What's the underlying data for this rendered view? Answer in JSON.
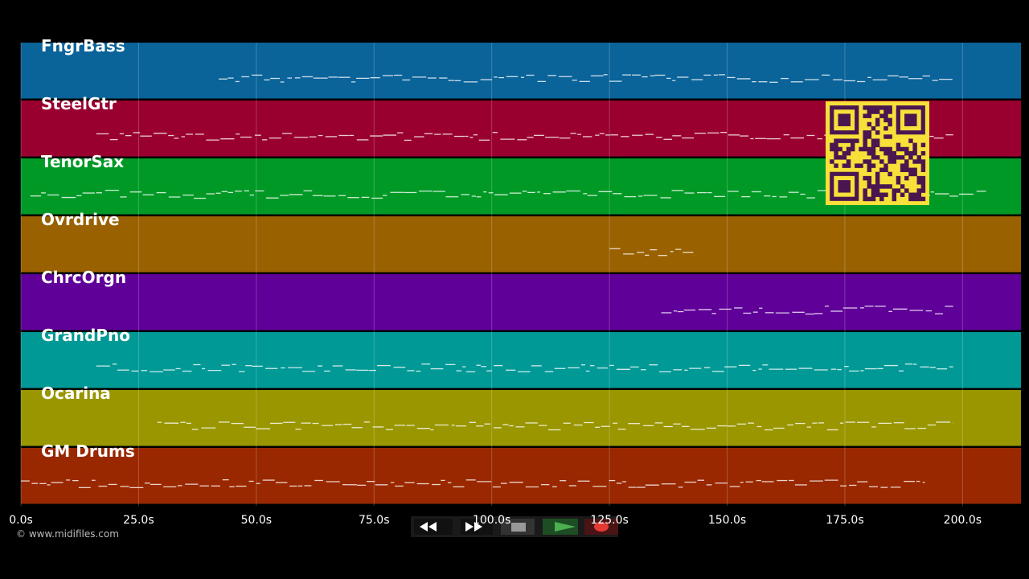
{
  "tracks": [
    {
      "name": "FngrBass",
      "color": "#0a6399",
      "span": [
        42,
        198
      ]
    },
    {
      "name": "SteelGtr",
      "color": "#990030",
      "span": [
        16,
        198
      ]
    },
    {
      "name": "TenorSax",
      "color": "#009926",
      "span": [
        2,
        205
      ]
    },
    {
      "name": "Ovrdrive",
      "color": "#996100",
      "span": [
        125,
        143
      ]
    },
    {
      "name": "ChrcOrgn",
      "color": "#5f0099",
      "span": [
        136,
        198
      ]
    },
    {
      "name": "GrandPno",
      "color": "#009996",
      "span": [
        16,
        198
      ]
    },
    {
      "name": "Ocarina",
      "color": "#999600",
      "span": [
        29,
        198
      ]
    },
    {
      "name": "GM Drums",
      "color": "#992800",
      "span": [
        0,
        192
      ]
    }
  ],
  "axis": {
    "xlim": [
      0,
      212.4
    ],
    "ticks": [
      {
        "value": 0,
        "label": "0.0s"
      },
      {
        "value": 25,
        "label": "25.0s"
      },
      {
        "value": 50,
        "label": "50.0s"
      },
      {
        "value": 75,
        "label": "75.0s"
      },
      {
        "value": 100,
        "label": "100.0s"
      },
      {
        "value": 125,
        "label": "125.0s"
      },
      {
        "value": 150,
        "label": "150.0s"
      },
      {
        "value": 175,
        "label": "175.0s"
      },
      {
        "value": 200,
        "label": "200.0s"
      }
    ]
  },
  "copyright": "© www.midifiles.com"
}
